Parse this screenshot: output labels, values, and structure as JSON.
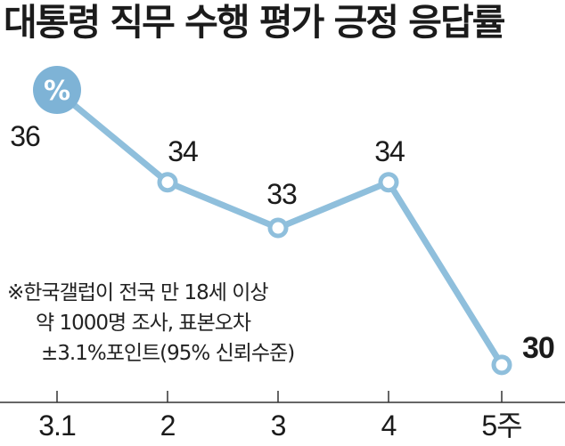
{
  "title": "대통령 직무 수행 평가 긍정 응답률",
  "unit_badge": "%",
  "note": [
    "※한국갤럽이 전국 만 18세 이상",
    "약 1000명 조사, 표본오차",
    "±3.1%포인트(95% 신뢰수준)"
  ],
  "colors": {
    "line": "#8fbfdc",
    "badge": "#7eb3d6",
    "axis": "#333333",
    "text": "#1b1b1b"
  },
  "chart_data": {
    "type": "line",
    "categories": [
      "3.1",
      "2",
      "3",
      "4",
      "5주"
    ],
    "series": [
      {
        "values": [
          36,
          34,
          33,
          34,
          30
        ]
      }
    ],
    "data_labels": [
      "36",
      "34",
      "33",
      "34",
      "30"
    ]
  }
}
